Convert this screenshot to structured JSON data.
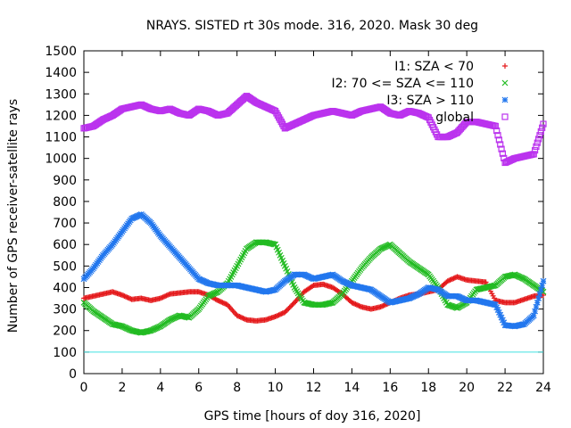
{
  "chart_data": {
    "type": "scatter",
    "title": "NRAYS. SISTED rt 30s mode. 316, 2020. Mask 30 deg",
    "xlabel": "GPS time [hours of doy 316, 2020]",
    "ylabel": "Number of GPS receiver-satellite rays",
    "xlim": [
      0,
      24
    ],
    "ylim": [
      0,
      1500
    ],
    "xticks": [
      "0",
      "2",
      "4",
      "6",
      "8",
      "10",
      "12",
      "14",
      "16",
      "18",
      "20",
      "22",
      "24"
    ],
    "yticks": [
      "0",
      "100",
      "200",
      "300",
      "400",
      "500",
      "600",
      "700",
      "800",
      "900",
      "1000",
      "1100",
      "1200",
      "1300",
      "1400",
      "1500"
    ],
    "grid": false,
    "legend_position": "top-right",
    "reference_line": {
      "y": 100,
      "color": "#40e0e0"
    },
    "series": [
      {
        "name": "I1: SZA < 70",
        "marker": "+",
        "color": "#e41a1c",
        "x": [
          0,
          0.5,
          1,
          1.5,
          2,
          2.5,
          3,
          3.5,
          4,
          4.5,
          5,
          5.5,
          6,
          6.5,
          7,
          7.5,
          8,
          8.5,
          9,
          9.5,
          10,
          10.5,
          11,
          11.5,
          12,
          12.5,
          13,
          13.5,
          14,
          14.5,
          15,
          15.5,
          16,
          16.5,
          17,
          17.5,
          18,
          18.5,
          19,
          19.5,
          20,
          20.5,
          21,
          21.5,
          22,
          22.5,
          23,
          23.5,
          24
        ],
        "y": [
          350,
          360,
          370,
          380,
          365,
          345,
          350,
          340,
          350,
          370,
          375,
          380,
          380,
          365,
          340,
          320,
          270,
          250,
          245,
          250,
          265,
          285,
          330,
          380,
          410,
          415,
          400,
          370,
          330,
          310,
          300,
          310,
          330,
          350,
          365,
          370,
          380,
          390,
          430,
          450,
          435,
          430,
          425,
          340,
          330,
          330,
          345,
          360,
          365
        ]
      },
      {
        "name": "I2: 70 <= SZA <= 110",
        "marker": "x",
        "color": "#22bb22",
        "x": [
          0,
          0.5,
          1,
          1.5,
          2,
          2.5,
          3,
          3.5,
          4,
          4.5,
          5,
          5.5,
          6,
          6.5,
          7,
          7.5,
          8,
          8.5,
          9,
          9.5,
          10,
          10.5,
          11,
          11.5,
          12,
          12.5,
          13,
          13.5,
          14,
          14.5,
          15,
          15.5,
          16,
          16.5,
          17,
          17.5,
          18,
          18.5,
          19,
          19.5,
          20,
          20.5,
          21,
          21.5,
          22,
          22.5,
          23,
          23.5,
          24
        ],
        "y": [
          330,
          290,
          260,
          230,
          220,
          200,
          190,
          200,
          220,
          250,
          270,
          260,
          300,
          360,
          380,
          420,
          500,
          580,
          610,
          610,
          600,
          500,
          400,
          330,
          320,
          320,
          330,
          370,
          430,
          490,
          540,
          580,
          600,
          560,
          520,
          490,
          460,
          400,
          320,
          305,
          330,
          390,
          400,
          410,
          450,
          460,
          440,
          410,
          380
        ]
      },
      {
        "name": "I3: SZA > 110",
        "marker": "*",
        "color": "#2277ee",
        "x": [
          0,
          0.5,
          1,
          1.5,
          2,
          2.5,
          3,
          3.5,
          4,
          4.5,
          5,
          5.5,
          6,
          6.5,
          7,
          7.5,
          8,
          8.5,
          9,
          9.5,
          10,
          10.5,
          11,
          11.5,
          12,
          12.5,
          13,
          13.5,
          14,
          14.5,
          15,
          15.5,
          16,
          16.5,
          17,
          17.5,
          18,
          18.5,
          19,
          19.5,
          20,
          20.5,
          21,
          21.5,
          22,
          22.5,
          23,
          23.5,
          24
        ],
        "y": [
          440,
          490,
          550,
          600,
          660,
          720,
          740,
          700,
          640,
          590,
          540,
          490,
          440,
          420,
          410,
          410,
          410,
          400,
          390,
          380,
          390,
          430,
          460,
          460,
          440,
          450,
          460,
          430,
          410,
          400,
          390,
          360,
          330,
          340,
          350,
          370,
          400,
          390,
          360,
          360,
          340,
          340,
          330,
          320,
          225,
          220,
          230,
          270,
          430
        ]
      },
      {
        "name": "global",
        "marker": "square",
        "color": "#bb33ee",
        "x": [
          0,
          0.5,
          1,
          1.5,
          2,
          2.5,
          3,
          3.5,
          4,
          4.5,
          5,
          5.5,
          6,
          6.5,
          7,
          7.5,
          8,
          8.5,
          9,
          9.5,
          10,
          10.5,
          11,
          11.5,
          12,
          12.5,
          13,
          13.5,
          14,
          14.5,
          15,
          15.5,
          16,
          16.5,
          17,
          17.5,
          18,
          18.5,
          19,
          19.5,
          20,
          20.5,
          21,
          21.5,
          22,
          22.5,
          23,
          23.5,
          24
        ],
        "y": [
          1140,
          1150,
          1180,
          1200,
          1230,
          1240,
          1250,
          1230,
          1220,
          1230,
          1210,
          1200,
          1230,
          1220,
          1200,
          1210,
          1250,
          1290,
          1260,
          1240,
          1220,
          1140,
          1160,
          1180,
          1200,
          1210,
          1220,
          1210,
          1200,
          1220,
          1230,
          1240,
          1210,
          1200,
          1220,
          1210,
          1190,
          1100,
          1100,
          1120,
          1170,
          1170,
          1160,
          1150,
          980,
          1000,
          1010,
          1020,
          1160
        ]
      }
    ]
  }
}
